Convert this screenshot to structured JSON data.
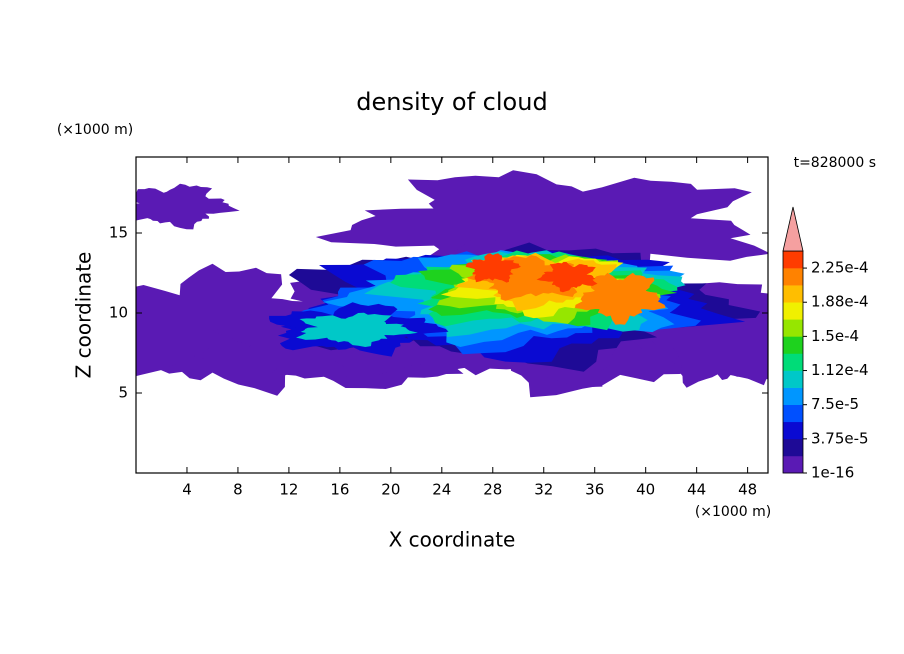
{
  "chart_data": {
    "type": "contour",
    "title": "density of cloud",
    "x_label": "X coordinate",
    "y_label": "Z coordinate",
    "x_unit": "(×1000 m)",
    "y_unit": "(×1000 m)",
    "time_label": "t=828000 s",
    "xlim": [
      0,
      49.6
    ],
    "ylim": [
      0,
      19.75
    ],
    "xticks": [
      4,
      8,
      12,
      16,
      20,
      24,
      28,
      32,
      36,
      40,
      44,
      48
    ],
    "yticks": [
      5,
      10,
      15
    ],
    "colorbar": {
      "clim": [
        0,
        0.00024375
      ],
      "ticks": [
        {
          "value": 1e-16,
          "label": "1e-16"
        },
        {
          "value": 3.75e-05,
          "label": "3.75e-5"
        },
        {
          "value": 7.5e-05,
          "label": "7.5e-5"
        },
        {
          "value": 0.0001125,
          "label": "1.12e-4"
        },
        {
          "value": 0.00015,
          "label": "1.5e-4"
        },
        {
          "value": 0.0001875,
          "label": "1.88e-4"
        },
        {
          "value": 0.000225,
          "label": "2.25e-4"
        }
      ],
      "colors": [
        "#5a1ab4",
        "#1e0a96",
        "#0a0ad2",
        "#0050ff",
        "#0096ff",
        "#00c8c8",
        "#00dc78",
        "#1ed21e",
        "#96e600",
        "#f0f000",
        "#ffbe00",
        "#ff8200",
        "#ff3c00"
      ],
      "extend_color": "#f5a0a0"
    }
  }
}
